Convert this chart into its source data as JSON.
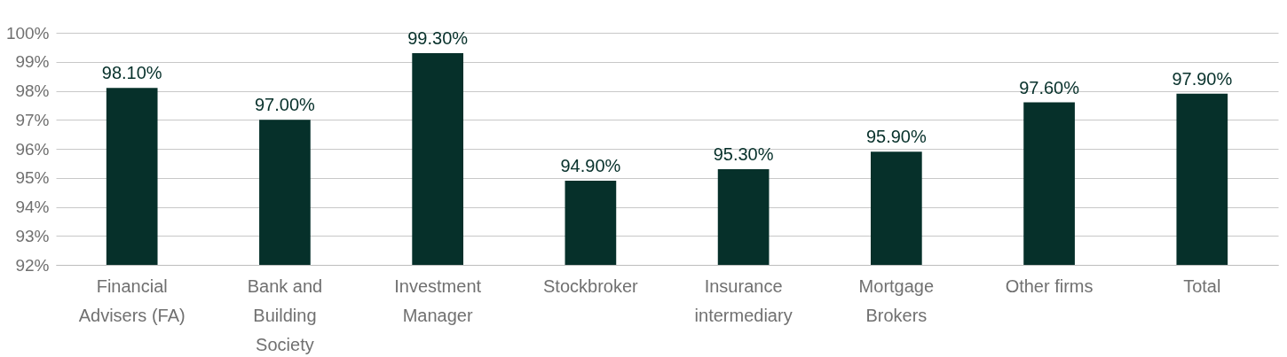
{
  "chart_data": {
    "type": "bar",
    "categories": [
      "Financial Advisers (FA)",
      "Bank and Building Society",
      "Investment Manager",
      "Stockbroker",
      "Insurance intermediary",
      "Mortgage Brokers",
      "Other firms",
      "Total"
    ],
    "values": [
      98.1,
      97.0,
      99.3,
      94.9,
      95.3,
      95.9,
      97.6,
      97.9
    ],
    "value_labels": [
      "98.10%",
      "97.00%",
      "99.30%",
      "94.90%",
      "95.30%",
      "95.90%",
      "97.60%",
      "97.90%"
    ],
    "color": "#06302a",
    "ylim": [
      92,
      100
    ],
    "yticks": [
      {
        "value": 92,
        "label": "92%"
      },
      {
        "value": 93,
        "label": "93%"
      },
      {
        "value": 94,
        "label": "94%"
      },
      {
        "value": 95,
        "label": "95%"
      },
      {
        "value": 96,
        "label": "96%"
      },
      {
        "value": 97,
        "label": "97%"
      },
      {
        "value": 98,
        "label": "98%"
      },
      {
        "value": 99,
        "label": "99%"
      },
      {
        "value": 100,
        "label": "100%"
      }
    ],
    "grid": "y"
  }
}
